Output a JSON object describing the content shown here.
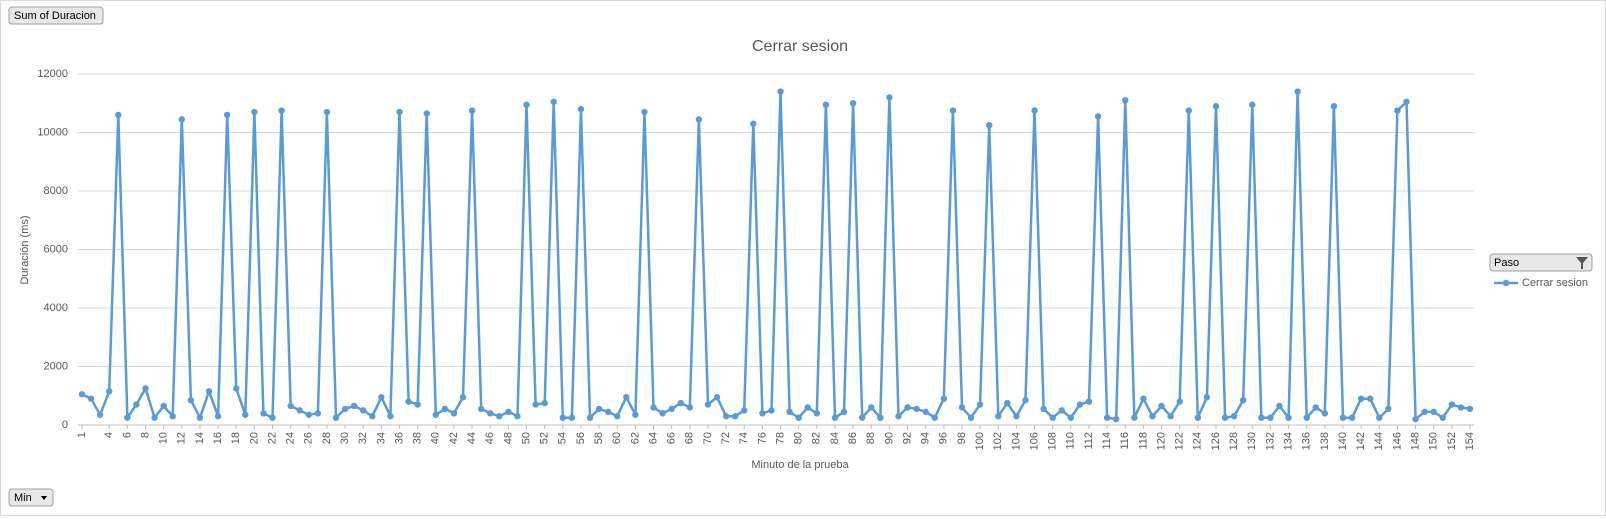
{
  "chart_data": {
    "type": "line",
    "title": "Cerrar sesion",
    "pivot_value_field": "Sum of Duracion",
    "axis_field": "Min",
    "legend_field": "Paso",
    "x_label": "Minuto de la prueba",
    "y_label": "Duración (ms)",
    "x": [
      1,
      2,
      3,
      4,
      5,
      6,
      7,
      8,
      9,
      10,
      11,
      12,
      13,
      14,
      15,
      16,
      17,
      18,
      19,
      20,
      21,
      22,
      23,
      24,
      25,
      26,
      27,
      28,
      29,
      30,
      31,
      32,
      33,
      34,
      35,
      36,
      37,
      38,
      39,
      40,
      41,
      42,
      43,
      44,
      45,
      46,
      47,
      48,
      49,
      50,
      51,
      52,
      53,
      54,
      55,
      56,
      57,
      58,
      59,
      60,
      61,
      62,
      63,
      64,
      65,
      66,
      67,
      68,
      69,
      70,
      71,
      72,
      73,
      74,
      75,
      76,
      77,
      78,
      79,
      80,
      81,
      82,
      83,
      84,
      85,
      86,
      87,
      88,
      89,
      90,
      91,
      92,
      93,
      94,
      95,
      96,
      97,
      98,
      99,
      100,
      101,
      102,
      103,
      104,
      105,
      106,
      107,
      108,
      109,
      110,
      111,
      112,
      113,
      114,
      115,
      116,
      117,
      118,
      119,
      120,
      121,
      122,
      123,
      124,
      125,
      126,
      127,
      128,
      129,
      130,
      131,
      132,
      133,
      134,
      135,
      136,
      137,
      138,
      139,
      140,
      141,
      142,
      143,
      144,
      145,
      146,
      147,
      148,
      149,
      150,
      151,
      152,
      153,
      154
    ],
    "xlim": [
      1,
      154
    ],
    "xticks": [
      1,
      4,
      6,
      8,
      10,
      12,
      14,
      16,
      18,
      20,
      22,
      24,
      26,
      28,
      30,
      32,
      34,
      36,
      38,
      40,
      42,
      44,
      46,
      48,
      50,
      52,
      54,
      56,
      58,
      60,
      62,
      64,
      66,
      68,
      70,
      72,
      74,
      76,
      78,
      80,
      82,
      84,
      86,
      88,
      90,
      92,
      94,
      96,
      98,
      100,
      102,
      104,
      106,
      108,
      110,
      112,
      114,
      116,
      118,
      120,
      122,
      124,
      126,
      128,
      130,
      132,
      134,
      136,
      138,
      140,
      142,
      144,
      146,
      148,
      150,
      152,
      154
    ],
    "ylim": [
      0,
      12000
    ],
    "yticks": [
      0,
      2000,
      4000,
      6000,
      8000,
      10000,
      12000
    ],
    "grid": true,
    "legend_position": "right",
    "series": [
      {
        "name": "Cerrar sesion",
        "color": "#5b9bd5",
        "values": [
          1050,
          900,
          350,
          1150,
          10600,
          250,
          700,
          1250,
          250,
          650,
          300,
          10450,
          850,
          250,
          1150,
          300,
          10600,
          1250,
          350,
          10700,
          400,
          250,
          10750,
          650,
          500,
          350,
          400,
          10700,
          250,
          550,
          650,
          500,
          300,
          950,
          300,
          10700,
          800,
          700,
          10650,
          350,
          550,
          400,
          950,
          10750,
          550,
          400,
          300,
          450,
          300,
          10950,
          700,
          750,
          11050,
          250,
          250,
          10800,
          250,
          550,
          450,
          300,
          950,
          350,
          10700,
          600,
          400,
          550,
          750,
          600,
          10450,
          700,
          950,
          300,
          300,
          500,
          10300,
          400,
          500,
          11400,
          450,
          250,
          600,
          400,
          10950,
          250,
          450,
          11000,
          250,
          600,
          250,
          11200,
          300,
          600,
          550,
          450,
          250,
          900,
          10750,
          600,
          250,
          700,
          10250,
          300,
          750,
          300,
          850,
          10750,
          550,
          250,
          500,
          250,
          700,
          800,
          10550,
          250,
          200,
          11100,
          250,
          900,
          300,
          650,
          300,
          800,
          10750,
          250,
          950,
          10900,
          250,
          300,
          850,
          10950,
          250,
          250,
          650,
          250,
          11400,
          250,
          600,
          400,
          10900,
          250,
          250,
          900,
          900,
          250,
          550,
          10750,
          11050,
          200,
          450,
          450,
          250,
          700,
          600,
          550
        ]
      }
    ]
  }
}
